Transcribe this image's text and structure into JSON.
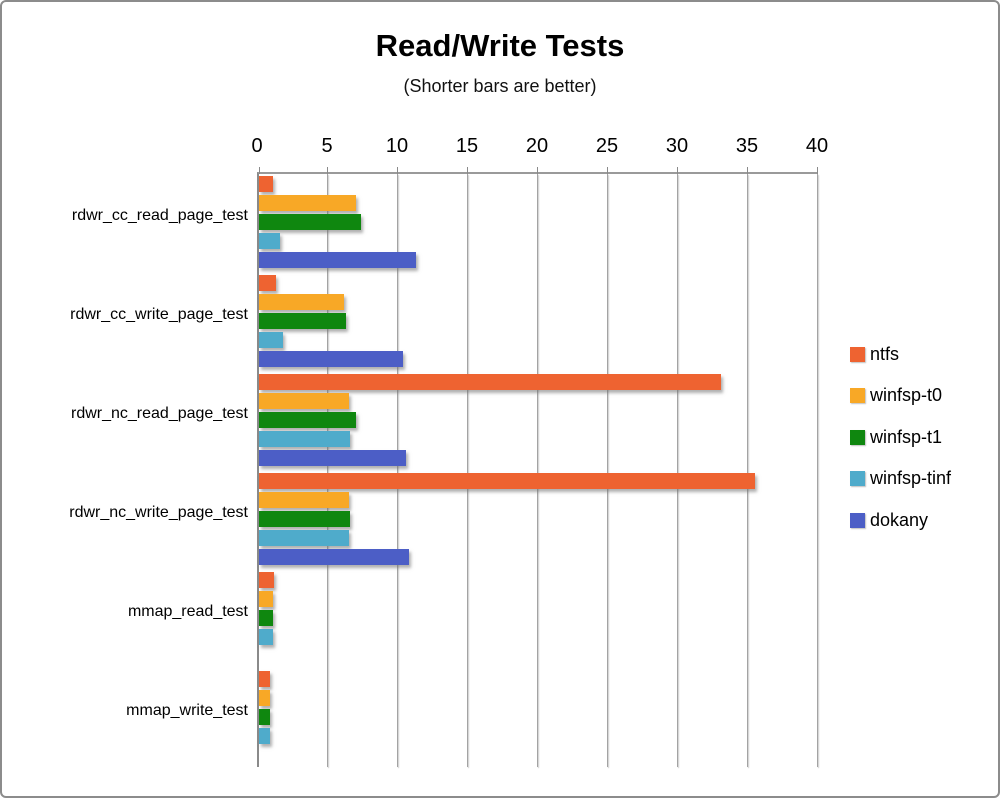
{
  "window": {
    "background": "#ffffff",
    "frame_border_color": "#8c8c8c"
  },
  "chart_data": {
    "type": "bar",
    "orientation": "horizontal",
    "title": "Read/Write Tests",
    "subtitle": "(Shorter bars are better)",
    "xlabel": "",
    "ylabel": "",
    "xlim": [
      0,
      40
    ],
    "x_ticks": [
      0,
      5,
      10,
      15,
      20,
      25,
      30,
      35,
      40
    ],
    "grid": true,
    "legend_position": "right",
    "categories": [
      "rdwr_cc_read_page_test",
      "rdwr_cc_write_page_test",
      "rdwr_nc_read_page_test",
      "rdwr_nc_write_page_test",
      "mmap_read_test",
      "mmap_write_test"
    ],
    "series": [
      {
        "name": "ntfs",
        "color": "#EE6331",
        "values": [
          1.0,
          1.2,
          33.0,
          35.4,
          1.1,
          0.8
        ]
      },
      {
        "name": "winfsp-t0",
        "color": "#F8A826",
        "values": [
          6.9,
          6.1,
          6.4,
          6.4,
          1.0,
          0.8
        ]
      },
      {
        "name": "winfsp-t1",
        "color": "#0F870F",
        "values": [
          7.3,
          6.2,
          6.9,
          6.5,
          1.0,
          0.8
        ]
      },
      {
        "name": "winfsp-tinf",
        "color": "#4FABCB",
        "values": [
          1.5,
          1.7,
          6.5,
          6.4,
          1.0,
          0.8
        ]
      },
      {
        "name": "dokany",
        "color": "#4C5EC6",
        "values": [
          11.2,
          10.3,
          10.5,
          10.7,
          0,
          0
        ]
      }
    ],
    "style": {
      "gridline_color": "#a3a3a3",
      "axis_color": "#8a8a8a"
    }
  }
}
